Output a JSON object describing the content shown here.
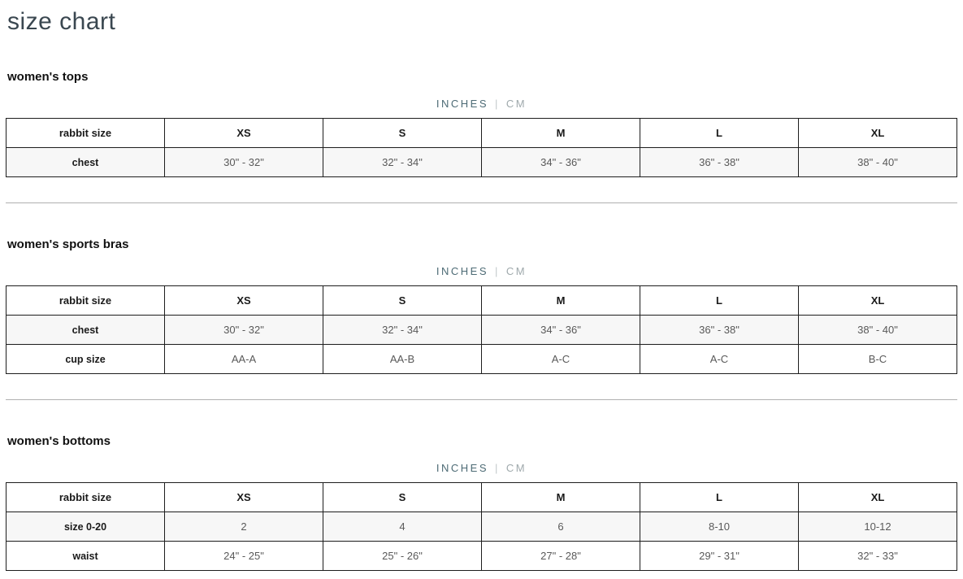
{
  "page": {
    "title": "size chart"
  },
  "unit_toggle": {
    "inches": "INCHES",
    "separator": "|",
    "cm": "CM"
  },
  "colors": {
    "accent": "#4d6b75",
    "muted": "#9fa9ac",
    "row_alt": "#f7f7f7",
    "border": "#1d1d1d",
    "divider": "#b0b0b0",
    "cell_text": "#595959",
    "title": "#3a4750"
  },
  "sections": [
    {
      "heading": "women's tops",
      "table": {
        "header": [
          "rabbit size",
          "XS",
          "S",
          "M",
          "L",
          "XL"
        ],
        "rows": [
          {
            "label": "chest",
            "values": [
              "30\" - 32\"",
              "32\" - 34\"",
              "34\" - 36\"",
              "36\" - 38\"",
              "38\" - 40\""
            ]
          }
        ]
      }
    },
    {
      "heading": "women's sports bras",
      "table": {
        "header": [
          "rabbit size",
          "XS",
          "S",
          "M",
          "L",
          "XL"
        ],
        "rows": [
          {
            "label": "chest",
            "values": [
              "30\" - 32\"",
              "32\" - 34\"",
              "34\" - 36\"",
              "36\" - 38\"",
              "38\" - 40\""
            ]
          },
          {
            "label": "cup size",
            "values": [
              "AA-A",
              "AA-B",
              "A-C",
              "A-C",
              "B-C"
            ]
          }
        ]
      }
    },
    {
      "heading": "women's bottoms",
      "table": {
        "header": [
          "rabbit size",
          "XS",
          "S",
          "M",
          "L",
          "XL"
        ],
        "rows": [
          {
            "label": "size 0-20",
            "values": [
              "2",
              "4",
              "6",
              "8-10",
              "10-12"
            ]
          },
          {
            "label": "waist",
            "values": [
              "24\" - 25\"",
              "25\" - 26\"",
              "27\" - 28\"",
              "29\" - 31\"",
              "32\" - 33\""
            ]
          }
        ]
      }
    }
  ]
}
